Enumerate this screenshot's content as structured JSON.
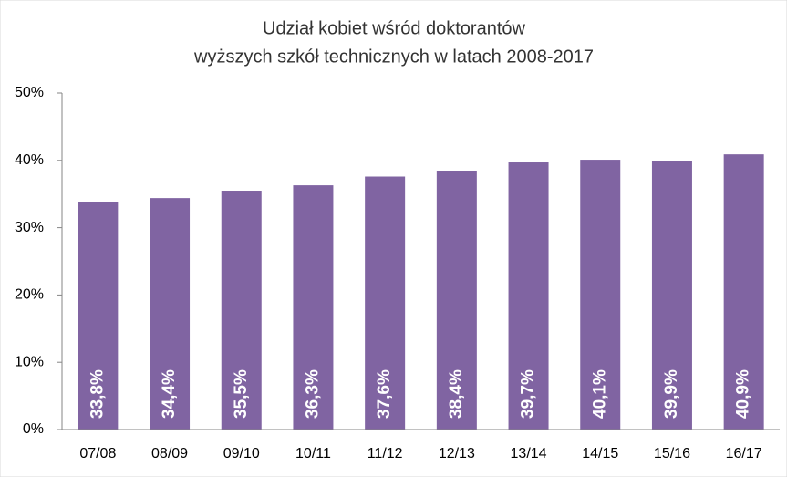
{
  "chart_data": {
    "type": "bar",
    "title": [
      "Udział kobiet wśród doktorantów",
      "wyższych szkół technicznych w latach 2008-2017"
    ],
    "categories": [
      "07/08",
      "08/09",
      "09/10",
      "10/11",
      "11/12",
      "12/13",
      "13/14",
      "14/15",
      "15/16",
      "16/17"
    ],
    "values": [
      33.8,
      34.4,
      35.5,
      36.3,
      37.6,
      38.4,
      39.7,
      40.1,
      39.9,
      40.9
    ],
    "value_labels": [
      "33,8%",
      "34,4%",
      "35,5%",
      "36,3%",
      "37,6%",
      "38,4%",
      "39,7%",
      "40,1%",
      "39,9%",
      "40,9%"
    ],
    "color": "#8064a2",
    "ylim": [
      0,
      50
    ],
    "yticks": [
      {
        "value": 0,
        "label": "0%"
      },
      {
        "value": 10,
        "label": "10%"
      },
      {
        "value": 20,
        "label": "20%"
      },
      {
        "value": 30,
        "label": "30%"
      },
      {
        "value": 40,
        "label": "40%"
      },
      {
        "value": 50,
        "label": "50%"
      }
    ],
    "grid": false
  }
}
